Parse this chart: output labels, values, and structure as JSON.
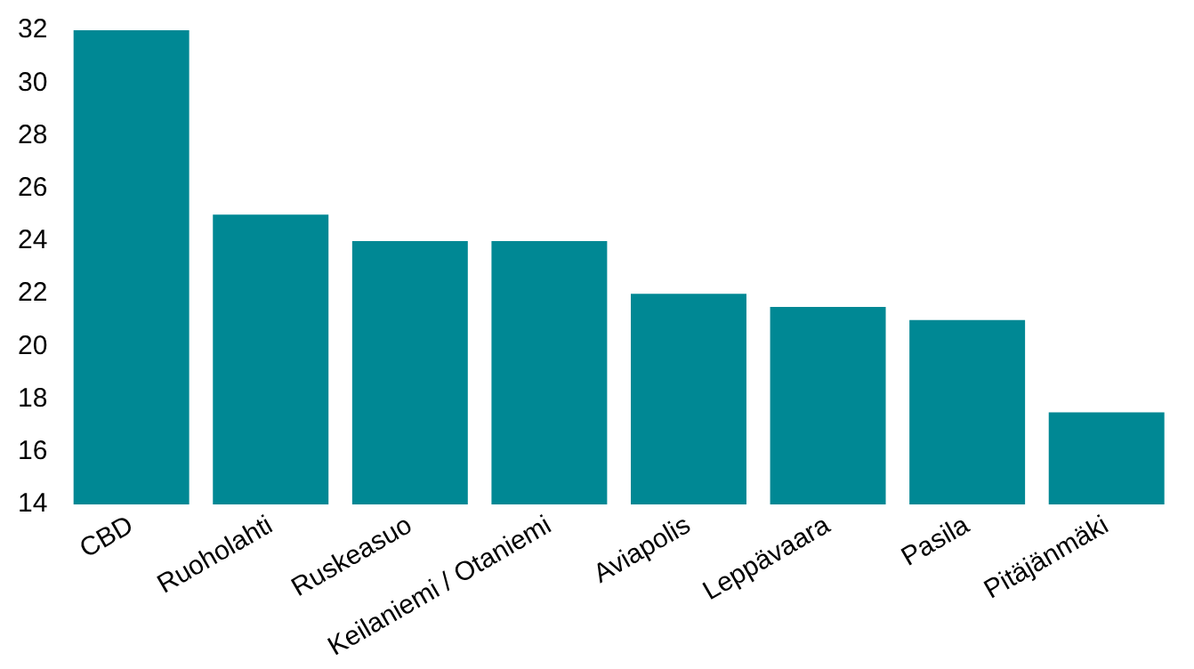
{
  "chart_data": {
    "type": "bar",
    "categories": [
      "CBD",
      "Ruoholahti",
      "Ruskeasuo",
      "Keilaniemi / Otaniemi",
      "Aviapolis",
      "Leppävaara",
      "Pasila",
      "Pitäjänmäki"
    ],
    "values": [
      32,
      25,
      24,
      24,
      22,
      21.5,
      21,
      17.5
    ],
    "color": "#008894",
    "ylim": [
      14,
      32
    ],
    "yticks": [
      14,
      16,
      18,
      20,
      22,
      24,
      26,
      28,
      30,
      32
    ],
    "grid": false,
    "legend": false
  }
}
